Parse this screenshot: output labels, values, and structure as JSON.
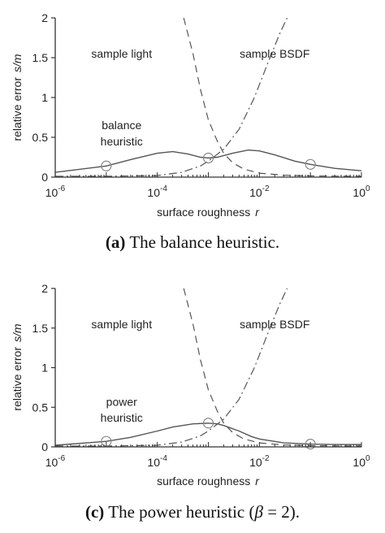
{
  "chart_data": [
    {
      "type": "line",
      "caption": {
        "label": "(a)",
        "text": "The balance heuristic."
      },
      "xlabel": "surface roughness",
      "xlabel_var": "r",
      "ylabel": "relative error",
      "ylabel_sym": "s/m",
      "x_scale": "log",
      "xlim": [
        1e-06,
        1
      ],
      "ylim": [
        0,
        2
      ],
      "x_ticks": [
        {
          "value": 1e-06,
          "base": "10",
          "exp": "-6"
        },
        {
          "value": 0.0001,
          "base": "10",
          "exp": "-4"
        },
        {
          "value": 0.01,
          "base": "10",
          "exp": "-2"
        },
        {
          "value": 1,
          "base": "10",
          "exp": "0"
        }
      ],
      "y_ticks": [
        "0",
        "0.5",
        "1",
        "1.5",
        "2"
      ],
      "annotations": [
        {
          "text": "sample light",
          "at": [
            2e-05,
            1.5
          ]
        },
        {
          "text": "sample BSDF",
          "at": [
            0.02,
            1.5
          ]
        },
        {
          "text": "balance",
          "at": [
            2e-05,
            0.6
          ]
        },
        {
          "text": "heuristic",
          "at": [
            2e-05,
            0.4
          ]
        }
      ],
      "series": [
        {
          "name": "sample light",
          "style": "dashed",
          "x": [
            0.00033,
            0.0005,
            0.0007,
            0.001,
            0.0015,
            0.002,
            0.003,
            0.005,
            0.01,
            0.03,
            0.1,
            0.3,
            1
          ],
          "y": [
            2.0,
            1.55,
            1.1,
            0.72,
            0.45,
            0.3,
            0.18,
            0.1,
            0.05,
            0.025,
            0.015,
            0.012,
            0.01
          ]
        },
        {
          "name": "sample BSDF",
          "style": "dashdot",
          "x": [
            1e-06,
            1e-05,
            0.0001,
            0.0003,
            0.0007,
            0.001,
            0.002,
            0.004,
            0.008,
            0.015,
            0.025,
            0.035
          ],
          "y": [
            0.01,
            0.01,
            0.02,
            0.06,
            0.14,
            0.2,
            0.35,
            0.6,
            1.0,
            1.45,
            1.8,
            2.0
          ]
        },
        {
          "name": "balance heuristic",
          "style": "solid",
          "x": [
            1e-06,
            1e-05,
            3e-05,
            0.0001,
            0.0002,
            0.0004,
            0.0007,
            0.001,
            0.0015,
            0.003,
            0.006,
            0.01,
            0.02,
            0.05,
            0.1,
            0.3,
            1
          ],
          "y": [
            0.06,
            0.14,
            0.22,
            0.3,
            0.32,
            0.29,
            0.25,
            0.24,
            0.25,
            0.3,
            0.34,
            0.33,
            0.28,
            0.2,
            0.16,
            0.11,
            0.08
          ]
        }
      ],
      "markers": [
        {
          "x": 1e-05,
          "y": 0.14
        },
        {
          "x": 0.001,
          "y": 0.24
        },
        {
          "x": 0.1,
          "y": 0.16
        }
      ]
    },
    {
      "type": "line",
      "caption": {
        "label": "(c)",
        "text": "The power heuristic (",
        "beta": "β",
        "text2": " = 2)."
      },
      "xlabel": "surface roughness",
      "xlabel_var": "r",
      "ylabel": "relative error",
      "ylabel_sym": "s/m",
      "x_scale": "log",
      "xlim": [
        1e-06,
        1
      ],
      "ylim": [
        0,
        2
      ],
      "x_ticks": [
        {
          "value": 1e-06,
          "base": "10",
          "exp": "-6"
        },
        {
          "value": 0.0001,
          "base": "10",
          "exp": "-4"
        },
        {
          "value": 0.01,
          "base": "10",
          "exp": "-2"
        },
        {
          "value": 1,
          "base": "10",
          "exp": "0"
        }
      ],
      "y_ticks": [
        "0",
        "0.5",
        "1",
        "1.5",
        "2"
      ],
      "annotations": [
        {
          "text": "sample light",
          "at": [
            2e-05,
            1.5
          ]
        },
        {
          "text": "sample BSDF",
          "at": [
            0.02,
            1.5
          ]
        },
        {
          "text": "power",
          "at": [
            2e-05,
            0.52
          ]
        },
        {
          "text": "heuristic",
          "at": [
            2e-05,
            0.32
          ]
        }
      ],
      "series": [
        {
          "name": "sample light",
          "style": "dashed",
          "x": [
            0.00033,
            0.0005,
            0.0007,
            0.001,
            0.0015,
            0.002,
            0.003,
            0.005,
            0.01,
            0.03,
            0.1,
            0.3,
            1
          ],
          "y": [
            2.0,
            1.55,
            1.1,
            0.72,
            0.45,
            0.3,
            0.18,
            0.1,
            0.05,
            0.025,
            0.015,
            0.012,
            0.01
          ]
        },
        {
          "name": "sample BSDF",
          "style": "dashdot",
          "x": [
            1e-06,
            1e-05,
            0.0001,
            0.0003,
            0.0007,
            0.001,
            0.002,
            0.004,
            0.008,
            0.015,
            0.025,
            0.035
          ],
          "y": [
            0.01,
            0.01,
            0.02,
            0.06,
            0.14,
            0.2,
            0.35,
            0.6,
            1.0,
            1.45,
            1.8,
            2.0
          ]
        },
        {
          "name": "power heuristic",
          "style": "solid",
          "x": [
            1e-06,
            1e-05,
            3e-05,
            0.0001,
            0.0002,
            0.0005,
            0.001,
            0.0015,
            0.002,
            0.004,
            0.007,
            0.01,
            0.03,
            0.1,
            0.3,
            1
          ],
          "y": [
            0.02,
            0.07,
            0.12,
            0.2,
            0.25,
            0.29,
            0.3,
            0.29,
            0.27,
            0.2,
            0.13,
            0.1,
            0.05,
            0.035,
            0.03,
            0.03
          ]
        }
      ],
      "markers": [
        {
          "x": 1e-05,
          "y": 0.07
        },
        {
          "x": 0.001,
          "y": 0.3
        },
        {
          "x": 0.1,
          "y": 0.035
        }
      ]
    }
  ]
}
